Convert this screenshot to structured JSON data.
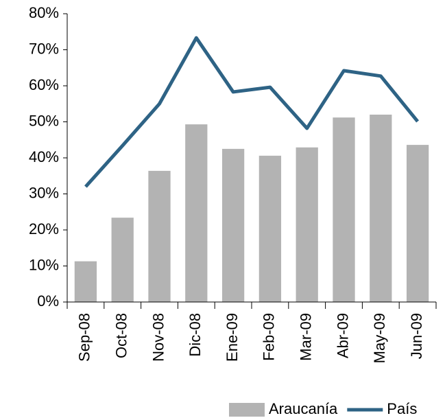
{
  "chart_data": {
    "type": "bar",
    "categories": [
      "Sep-08",
      "Oct-08",
      "Nov-08",
      "Dic-08",
      "Ene-09",
      "Feb-09",
      "Mar-09",
      "Abr-09",
      "May-09",
      "Jun-09"
    ],
    "series": [
      {
        "name": "Araucanía",
        "type": "bar",
        "color": "#b3b3b3",
        "values": [
          11.3,
          23.4,
          36.4,
          49.3,
          42.5,
          40.6,
          42.9,
          51.2,
          52.0,
          43.6
        ]
      },
      {
        "name": "País",
        "type": "line",
        "color": "#2e6385",
        "values": [
          32.0,
          43.4,
          55.0,
          73.3,
          58.3,
          59.6,
          48.2,
          64.2,
          62.7,
          50.1
        ]
      }
    ],
    "ylim": [
      0,
      80
    ],
    "yticks": [
      {
        "value": 0,
        "label": "0%"
      },
      {
        "value": 10,
        "label": "10%"
      },
      {
        "value": 20,
        "label": "20%"
      },
      {
        "value": 30,
        "label": "30%"
      },
      {
        "value": 40,
        "label": "40%"
      },
      {
        "value": 50,
        "label": "50%"
      },
      {
        "value": 60,
        "label": "60%"
      },
      {
        "value": 70,
        "label": "70%"
      },
      {
        "value": 80,
        "label": "80%"
      }
    ],
    "grid": false,
    "legend": "bottom-right"
  }
}
